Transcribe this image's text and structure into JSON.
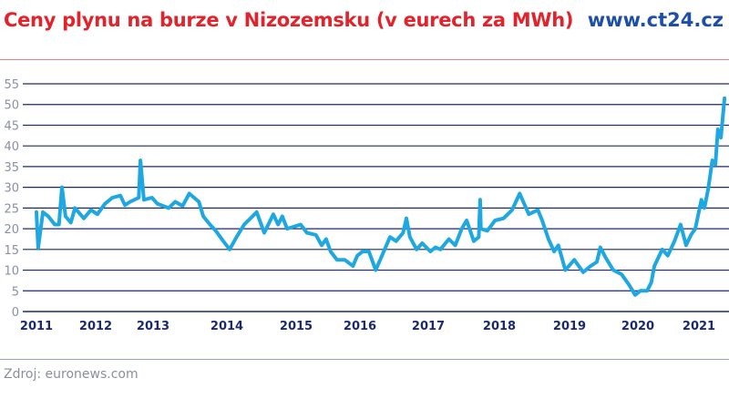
{
  "header": {
    "title": "Ceny plynu na burze v Nizozemsku (v eurech za MWh)",
    "site": "www.ct24.cz"
  },
  "footer": {
    "source": "Zdroj: euronews.com"
  },
  "colors": {
    "line": "#1ea7e1",
    "grid": "#1c2a6b",
    "title": "#e3232b",
    "site": "#1d4fa8",
    "ytick": "#8a8fa8",
    "xtick": "#1c2a6b"
  },
  "chart_data": {
    "type": "line",
    "title": "Ceny plynu na burze v Nizozemsku (v eurech za MWh)",
    "xlabel": "",
    "ylabel": "",
    "ylim": [
      0,
      55
    ],
    "yticks": [
      "0",
      "5",
      "10",
      "15",
      "20",
      "25",
      "30",
      "35",
      "40",
      "45",
      "50",
      "55"
    ],
    "xticks": [
      "2011",
      "2012",
      "2013",
      "2014",
      "2015",
      "2016",
      "2017",
      "2018",
      "2019",
      "2020",
      "2021"
    ],
    "grid": true,
    "series": [
      {
        "points": [
          [
            2011.0,
            24
          ],
          [
            2011.03,
            15.4
          ],
          [
            2011.11,
            24
          ],
          [
            2011.2,
            23
          ],
          [
            2011.31,
            21
          ],
          [
            2011.38,
            21
          ],
          [
            2011.43,
            30
          ],
          [
            2011.49,
            23
          ],
          [
            2011.58,
            21.5
          ],
          [
            2011.65,
            25
          ],
          [
            2011.8,
            22.5
          ],
          [
            2011.92,
            24.5
          ],
          [
            2012.03,
            23.5
          ],
          [
            2012.16,
            26
          ],
          [
            2012.29,
            27.5
          ],
          [
            2012.43,
            28
          ],
          [
            2012.51,
            25.7
          ],
          [
            2012.6,
            26.5
          ],
          [
            2012.75,
            27.5
          ],
          [
            2012.78,
            36.5
          ],
          [
            2012.84,
            27
          ],
          [
            2012.98,
            27.5
          ],
          [
            2013.06,
            26
          ],
          [
            2013.21,
            25
          ],
          [
            2013.3,
            26.5
          ],
          [
            2013.4,
            25.5
          ],
          [
            2013.49,
            28.5
          ],
          [
            2013.62,
            26.5
          ],
          [
            2013.68,
            23
          ],
          [
            2013.77,
            21
          ],
          [
            2013.85,
            19.5
          ],
          [
            2013.95,
            17
          ],
          [
            2014.04,
            15
          ],
          [
            2014.14,
            18
          ],
          [
            2014.25,
            21
          ],
          [
            2014.43,
            24
          ],
          [
            2014.54,
            19
          ],
          [
            2014.67,
            23.5
          ],
          [
            2014.74,
            21
          ],
          [
            2014.8,
            23
          ],
          [
            2014.87,
            20
          ],
          [
            2015.07,
            21
          ],
          [
            2015.17,
            19
          ],
          [
            2015.31,
            18.5
          ],
          [
            2015.4,
            16
          ],
          [
            2015.47,
            17.5
          ],
          [
            2015.54,
            14.5
          ],
          [
            2015.64,
            12.5
          ],
          [
            2015.76,
            12.5
          ],
          [
            2015.89,
            11
          ],
          [
            2015.96,
            13.5
          ],
          [
            2016.04,
            14.5
          ],
          [
            2016.07,
            14.5
          ],
          [
            2016.13,
            14.5
          ],
          [
            2016.23,
            10
          ],
          [
            2016.31,
            13
          ],
          [
            2016.44,
            18
          ],
          [
            2016.53,
            17
          ],
          [
            2016.63,
            19
          ],
          [
            2016.68,
            22.5
          ],
          [
            2016.73,
            18
          ],
          [
            2016.83,
            15
          ],
          [
            2016.91,
            16.5
          ],
          [
            2017.03,
            14.5
          ],
          [
            2017.1,
            15.5
          ],
          [
            2017.17,
            15
          ],
          [
            2017.29,
            17.5
          ],
          [
            2017.38,
            16
          ],
          [
            2017.47,
            20
          ],
          [
            2017.54,
            22
          ],
          [
            2017.64,
            17
          ],
          [
            2017.71,
            18
          ],
          [
            2017.73,
            27
          ],
          [
            2017.74,
            20
          ],
          [
            2017.83,
            19.5
          ],
          [
            2017.94,
            22
          ],
          [
            2018.06,
            22.5
          ],
          [
            2018.18,
            24.5
          ],
          [
            2018.29,
            28.5
          ],
          [
            2018.42,
            23.5
          ],
          [
            2018.55,
            24.5
          ],
          [
            2018.61,
            22
          ],
          [
            2018.7,
            17.5
          ],
          [
            2018.78,
            14.5
          ],
          [
            2018.84,
            16
          ],
          [
            2018.94,
            10
          ],
          [
            2019.07,
            12.5
          ],
          [
            2019.2,
            9.5
          ],
          [
            2019.31,
            11
          ],
          [
            2019.4,
            12
          ],
          [
            2019.45,
            15.5
          ],
          [
            2019.53,
            13
          ],
          [
            2019.64,
            10
          ],
          [
            2019.76,
            9
          ],
          [
            2019.87,
            6.5
          ],
          [
            2019.96,
            4
          ],
          [
            2020.04,
            5
          ],
          [
            2020.15,
            5
          ],
          [
            2020.22,
            7
          ],
          [
            2020.27,
            11
          ],
          [
            2020.4,
            15
          ],
          [
            2020.49,
            13.5
          ],
          [
            2020.6,
            17
          ],
          [
            2020.7,
            21
          ],
          [
            2020.79,
            16
          ],
          [
            2020.87,
            18.5
          ],
          [
            2020.94,
            20
          ],
          [
            2021.04,
            27
          ],
          [
            2021.09,
            25
          ],
          [
            2021.15,
            29.5
          ],
          [
            2021.22,
            36.5
          ],
          [
            2021.27,
            35.5
          ],
          [
            2021.31,
            44
          ],
          [
            2021.36,
            42
          ],
          [
            2021.42,
            51.5
          ]
        ]
      }
    ]
  }
}
